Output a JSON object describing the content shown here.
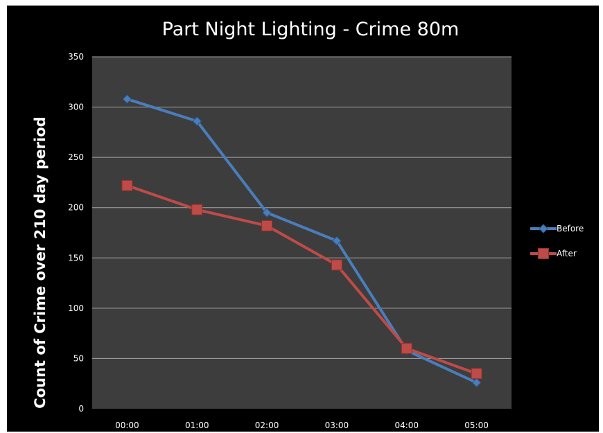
{
  "chart_data": {
    "type": "line",
    "title": "Part Night Lighting - Crime 80m",
    "xlabel": "",
    "ylabel": "Count of Crime over 210  day period",
    "categories": [
      "00:00",
      "01:00",
      "02:00",
      "03:00",
      "04:00",
      "05:00"
    ],
    "ylim": [
      0,
      350
    ],
    "yticks": [
      0,
      50,
      100,
      150,
      200,
      250,
      300,
      350
    ],
    "grid": true,
    "legend_position": "right",
    "series": [
      {
        "name": "Before",
        "color": "#4a7ebb",
        "marker": "diamond",
        "values": [
          308,
          286,
          195,
          167,
          58,
          26
        ]
      },
      {
        "name": "After",
        "color": "#be4b48",
        "marker": "square",
        "values": [
          222,
          198,
          182,
          143,
          60,
          35
        ]
      }
    ],
    "colors": {
      "background": "#000000",
      "plot_area": "#3d3d3d",
      "grid": "#a6a6a6",
      "text": "#ffffff"
    }
  }
}
